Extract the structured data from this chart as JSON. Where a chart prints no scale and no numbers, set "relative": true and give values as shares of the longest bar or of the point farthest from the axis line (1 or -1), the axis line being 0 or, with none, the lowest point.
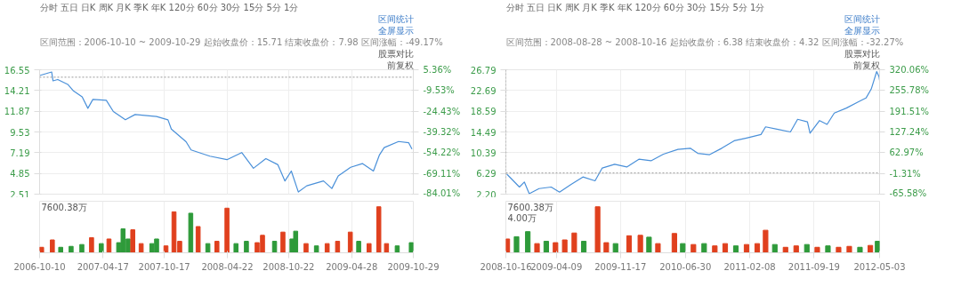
{
  "chart_data": [
    {
      "type": "line",
      "grid": true,
      "tick_labels": "y",
      "marker": "none",
      "line_style": "solid",
      "title": "分时  五日  日K  周K  月K  季K  年K  120分  60分  30分  15分  5分  1分",
      "subtitle": "区间范围：2006-10-10 ~ 2009-10-29  起始收盘价：15.71  结束收盘价：7.98  区间涨幅：-49.17%",
      "annotations": [
        "区间统计",
        "全屏显示",
        "股票对比",
        "前复权"
      ],
      "xlim": [
        "2006-10-10",
        "2009-10-29"
      ],
      "xticks": [
        "2006-10-10",
        "2007-04-17",
        "2007-10-17",
        "2008-04-22",
        "2008-10-22",
        "2009-04-28",
        "2009-10-29"
      ],
      "ylim": [
        2.51,
        16.55
      ],
      "yticks": [
        16.55,
        14.21,
        11.87,
        9.53,
        7.19,
        4.85,
        2.51
      ],
      "y2lim": [
        -84.01,
        5.36
      ],
      "y2ticks": [
        {
          "value": 5.36,
          "label": "5.36%"
        },
        {
          "value": -9.53,
          "label": "-9.53%"
        },
        {
          "value": -24.43,
          "label": "-24.43%"
        },
        {
          "value": -39.32,
          "label": "-39.32%"
        },
        {
          "value": -54.22,
          "label": "-54.22%"
        },
        {
          "value": -69.11,
          "label": "-69.11%"
        },
        {
          "value": -84.01,
          "label": "-84.01%"
        }
      ],
      "ref_lines": [
        {
          "axis": "y",
          "value": 15.71,
          "line_style": "dotted",
          "color": "#999999"
        }
      ],
      "series": [
        {
          "color": "#4a90d9",
          "x": [
            "2006-10-10",
            "2006-10-28",
            "2006-11-15",
            "2006-11-19",
            "2006-12-03",
            "2007-01-02",
            "2007-01-18",
            "2007-02-14",
            "2007-03-03",
            "2007-03-18",
            "2007-04-27",
            "2007-05-18",
            "2007-06-23",
            "2007-07-22",
            "2007-09-24",
            "2007-10-28",
            "2007-11-07",
            "2007-12-21",
            "2008-01-05",
            "2008-03-01",
            "2008-04-21",
            "2008-06-04",
            "2008-07-09",
            "2008-08-15",
            "2008-09-20",
            "2008-10-11",
            "2008-10-30",
            "2008-11-20",
            "2008-12-15",
            "2009-02-03",
            "2009-02-28",
            "2009-03-19",
            "2009-04-25",
            "2009-05-30",
            "2009-07-02",
            "2009-07-20",
            "2009-08-03",
            "2009-09-15",
            "2009-10-15",
            "2009-10-25"
          ],
          "values": [
            15.9,
            16.1,
            16.3,
            15.3,
            15.45,
            14.9,
            14.2,
            13.5,
            12.2,
            13.2,
            13.1,
            11.84,
            10.9,
            11.5,
            11.27,
            10.9,
            9.85,
            8.43,
            7.5,
            6.8,
            6.4,
            7.2,
            5.43,
            6.52,
            5.83,
            4.0,
            5.12,
            2.75,
            3.45,
            4.0,
            3.15,
            4.56,
            5.54,
            5.96,
            5.12,
            6.94,
            7.76,
            8.45,
            8.32,
            7.6
          ]
        }
      ]
    },
    {
      "type": "bar",
      "relative": true,
      "grid": "x",
      "tick_labels": "x",
      "xlim": [
        "2006-10-10",
        "2009-10-29"
      ],
      "xticks": [
        "2006-10-10",
        "2007-04-17",
        "2007-10-17",
        "2008-04-22",
        "2008-10-22",
        "2009-04-28",
        "2009-10-29"
      ],
      "annotations": [
        "7600.38万"
      ],
      "x": [
        "2006-10-16",
        "2006-11-17",
        "2006-12-12",
        "2007-01-12",
        "2007-02-13",
        "2007-03-14",
        "2007-04-12",
        "2007-05-05",
        "2007-06-03",
        "2007-06-16",
        "2007-07-01",
        "2007-07-15",
        "2007-08-09",
        "2007-09-10",
        "2007-09-24",
        "2007-10-22",
        "2007-11-15",
        "2007-12-02",
        "2008-01-04",
        "2008-01-26",
        "2008-02-24",
        "2008-03-22",
        "2008-04-21",
        "2008-05-18",
        "2008-06-18",
        "2008-07-20",
        "2008-08-05",
        "2008-09-10",
        "2008-10-05",
        "2008-11-01",
        "2008-11-12",
        "2008-12-13",
        "2009-01-13",
        "2009-02-14",
        "2009-03-17",
        "2009-04-24",
        "2009-05-19",
        "2009-06-19",
        "2009-07-18",
        "2009-08-10",
        "2009-09-11",
        "2009-10-23"
      ],
      "values": [
        0.12,
        0.28,
        0.12,
        0.14,
        0.18,
        0.33,
        0.2,
        0.3,
        0.22,
        0.52,
        0.3,
        0.5,
        0.2,
        0.2,
        0.3,
        0.15,
        0.89,
        0.25,
        0.86,
        0.57,
        0.2,
        0.25,
        0.97,
        0.2,
        0.25,
        0.22,
        0.38,
        0.25,
        0.45,
        0.3,
        0.47,
        0.2,
        0.15,
        0.2,
        0.25,
        0.45,
        0.25,
        0.2,
        1.0,
        0.2,
        0.15,
        0.22
      ],
      "colors": [
        "#e0401e",
        "#e0401e",
        "#2e9a3a",
        "#2e9a3a",
        "#2e9a3a",
        "#e0401e",
        "#2e9a3a",
        "#e0401e",
        "#2e9a3a",
        "#2e9a3a",
        "#2e9a3a",
        "#e0401e",
        "#e0401e",
        "#2e9a3a",
        "#2e9a3a",
        "#e0401e",
        "#e0401e",
        "#e0401e",
        "#2e9a3a",
        "#e0401e",
        "#2e9a3a",
        "#e0401e",
        "#e0401e",
        "#2e9a3a",
        "#2e9a3a",
        "#e0401e",
        "#e0401e",
        "#2e9a3a",
        "#e0401e",
        "#2e9a3a",
        "#2e9a3a",
        "#e0401e",
        "#2e9a3a",
        "#e0401e",
        "#e0401e",
        "#e0401e",
        "#2e9a3a",
        "#e0401e",
        "#e0401e",
        "#e0401e",
        "#2e9a3a",
        "#2e9a3a"
      ]
    },
    {
      "type": "line",
      "grid": true,
      "tick_labels": "y",
      "marker": "none",
      "line_style": "solid",
      "title": "分时  五日  日K  周K  月K  季K  年K  120分  60分  30分  15分  5分  1分",
      "subtitle": "区间范围：2008-08-28 ~ 2008-10-16  起始收盘价：6.38  结束收盘价：4.32  区间涨幅：-32.27%",
      "annotations": [
        "区间统计",
        "全屏显示",
        "股票对比",
        "前复权"
      ],
      "xlim": [
        "2008-10-16",
        "2012-05-03"
      ],
      "xticks": [
        "2008-10-16",
        "2009-04-09",
        "2009-11-17",
        "2010-06-30",
        "2011-02-08",
        "2011-09-19",
        "2012-05-03"
      ],
      "ylim": [
        2.2,
        26.79
      ],
      "yticks": [
        26.79,
        22.69,
        18.59,
        14.49,
        10.39,
        6.29,
        {
          "value": 2.2,
          "label": "2.20"
        }
      ],
      "y2lim": [
        -65.58,
        320.06
      ],
      "y2ticks": [
        {
          "value": 320.06,
          "label": "320.06%"
        },
        {
          "value": 255.78,
          "label": "255.78%"
        },
        {
          "value": 191.51,
          "label": "191.51%"
        },
        {
          "value": 127.24,
          "label": "127.24%"
        },
        {
          "value": 62.97,
          "label": "62.97%"
        },
        {
          "value": -1.31,
          "label": "-1.31%"
        },
        {
          "value": -65.58,
          "label": "-65.58%"
        }
      ],
      "ref_lines": [
        {
          "axis": "y",
          "value": 6.38,
          "line_style": "dotted",
          "color": "#999999"
        },
        {
          "axis": "x",
          "value": "2008-10-16",
          "line_style": "dotted",
          "color": "#999999"
        }
      ],
      "series": [
        {
          "color": "#4a90d9",
          "x": [
            "2008-10-16",
            "2008-10-21",
            "2008-12-02",
            "2008-12-19",
            "2009-01-05",
            "2009-02-08",
            "2009-03-22",
            "2009-04-20",
            "2009-05-29",
            "2009-07-10",
            "2009-08-21",
            "2009-09-15",
            "2009-10-28",
            "2009-12-09",
            "2010-01-20",
            "2010-03-03",
            "2010-04-15",
            "2010-06-04",
            "2010-07-17",
            "2010-08-12",
            "2010-09-22",
            "2010-11-03",
            "2010-12-16",
            "2011-01-28",
            "2011-03-19",
            "2011-04-04",
            "2011-05-17",
            "2011-06-29",
            "2011-07-24",
            "2011-08-27",
            "2011-09-05",
            "2011-10-08",
            "2011-11-03",
            "2011-11-28",
            "2012-01-09",
            "2012-02-20",
            "2012-03-17",
            "2012-04-04",
            "2012-04-23",
            "2012-05-01",
            "2012-05-03"
          ],
          "values": [
            6.4,
            6.07,
            3.61,
            4.6,
            2.3,
            3.3,
            3.6,
            2.6,
            4.09,
            5.6,
            4.84,
            7.37,
            8.1,
            7.57,
            9.1,
            8.8,
            10.1,
            11.06,
            11.27,
            10.26,
            10.0,
            11.27,
            12.75,
            13.3,
            14.0,
            15.5,
            15.0,
            14.5,
            17.0,
            16.5,
            14.24,
            16.75,
            15.99,
            18.23,
            19.22,
            20.47,
            21.2,
            22.96,
            26.43,
            25.45,
            24.7
          ]
        }
      ]
    },
    {
      "type": "bar",
      "relative": true,
      "grid": "x",
      "tick_labels": "x",
      "xlim": [
        "2008-10-16",
        "2012-05-03"
      ],
      "xticks": [
        "2008-10-16",
        "2009-04-09",
        "2009-11-17",
        "2010-06-30",
        "2011-02-08",
        "2011-09-19",
        "2012-05-03"
      ],
      "annotations": [
        "7600.38万",
        "4.00万"
      ],
      "x": [
        "2008-10-21",
        "2008-11-22",
        "2008-12-31",
        "2009-02-01",
        "2009-03-05",
        "2009-04-06",
        "2009-05-08",
        "2009-06-10",
        "2009-07-13",
        "2009-08-30",
        "2009-09-29",
        "2009-10-31",
        "2009-12-17",
        "2010-01-25",
        "2010-02-24",
        "2010-03-27",
        "2010-05-23",
        "2010-06-21",
        "2010-07-28",
        "2010-09-03",
        "2010-10-10",
        "2010-11-15",
        "2010-12-22",
        "2011-01-28",
        "2011-03-06",
        "2011-04-04",
        "2011-05-06",
        "2011-06-12",
        "2011-07-19",
        "2011-08-25",
        "2011-09-30",
        "2011-11-06",
        "2011-12-13",
        "2012-01-19",
        "2012-02-25",
        "2012-04-01",
        "2012-04-26"
      ],
      "values": [
        0.3,
        0.35,
        0.46,
        0.2,
        0.25,
        0.22,
        0.28,
        0.43,
        0.25,
        1.0,
        0.22,
        0.2,
        0.37,
        0.38,
        0.34,
        0.2,
        0.42,
        0.2,
        0.18,
        0.2,
        0.15,
        0.2,
        0.15,
        0.18,
        0.2,
        0.49,
        0.18,
        0.12,
        0.15,
        0.18,
        0.12,
        0.15,
        0.12,
        0.14,
        0.12,
        0.16,
        0.25
      ],
      "colors": [
        "#e0401e",
        "#2e9a3a",
        "#2e9a3a",
        "#e0401e",
        "#2e9a3a",
        "#e0401e",
        "#e0401e",
        "#e0401e",
        "#2e9a3a",
        "#e0401e",
        "#e0401e",
        "#2e9a3a",
        "#e0401e",
        "#e0401e",
        "#2e9a3a",
        "#e0401e",
        "#e0401e",
        "#2e9a3a",
        "#e0401e",
        "#2e9a3a",
        "#e0401e",
        "#e0401e",
        "#2e9a3a",
        "#e0401e",
        "#e0401e",
        "#e0401e",
        "#2e9a3a",
        "#e0401e",
        "#e0401e",
        "#2e9a3a",
        "#e0401e",
        "#2e9a3a",
        "#e0401e",
        "#e0401e",
        "#2e9a3a",
        "#e0401e",
        "#2e9a3a"
      ]
    }
  ]
}
